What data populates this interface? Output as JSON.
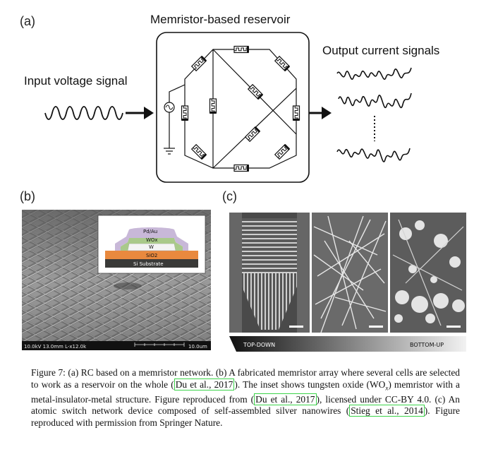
{
  "panel_a": {
    "label": "(a)",
    "title": "Memristor-based reservoir",
    "input_label": "Input voltage signal",
    "output_label": "Output current signals"
  },
  "panel_b": {
    "label": "(b)",
    "inset_layers": [
      "Pd/Au",
      "WOx",
      "W",
      "SiO2",
      "Si Substrate"
    ],
    "scale_left": "10.0kV 13.0mm L-x12.0k",
    "scale_right": "10.0um"
  },
  "panel_c": {
    "label": "(c)",
    "bar_left": "TOP-DOWN",
    "bar_right": "BOTTOM-UP"
  },
  "caption": {
    "t1": "Figure 7: (a) RC based on a memristor network. (b) A fabricated memristor array where several cells are selected to work as a reservoir on the whole (",
    "c1": "Du et al., 2017",
    "t2": "). The inset shows tungsten oxide (WO",
    "sub": "x",
    "t3": ") memristor with a metal-insulator-metal structure. Figure reproduced from (",
    "c2": "Du et al., 2017",
    "t4": "), licensed under CC-BY 4.0. (c) An atomic switch network device composed of self-assembled silver nanowires (",
    "c3": "Stieg et al., 2014",
    "t5": "). Figure reproduced with permission from Springer Nature."
  },
  "colors": {
    "citation_box": "#3cd44a",
    "pd_au": "#c8b8d8",
    "wox": "#a9c98a",
    "w": "#f4f4f4",
    "sio2": "#e9893e",
    "substrate": "#3a3a38"
  }
}
